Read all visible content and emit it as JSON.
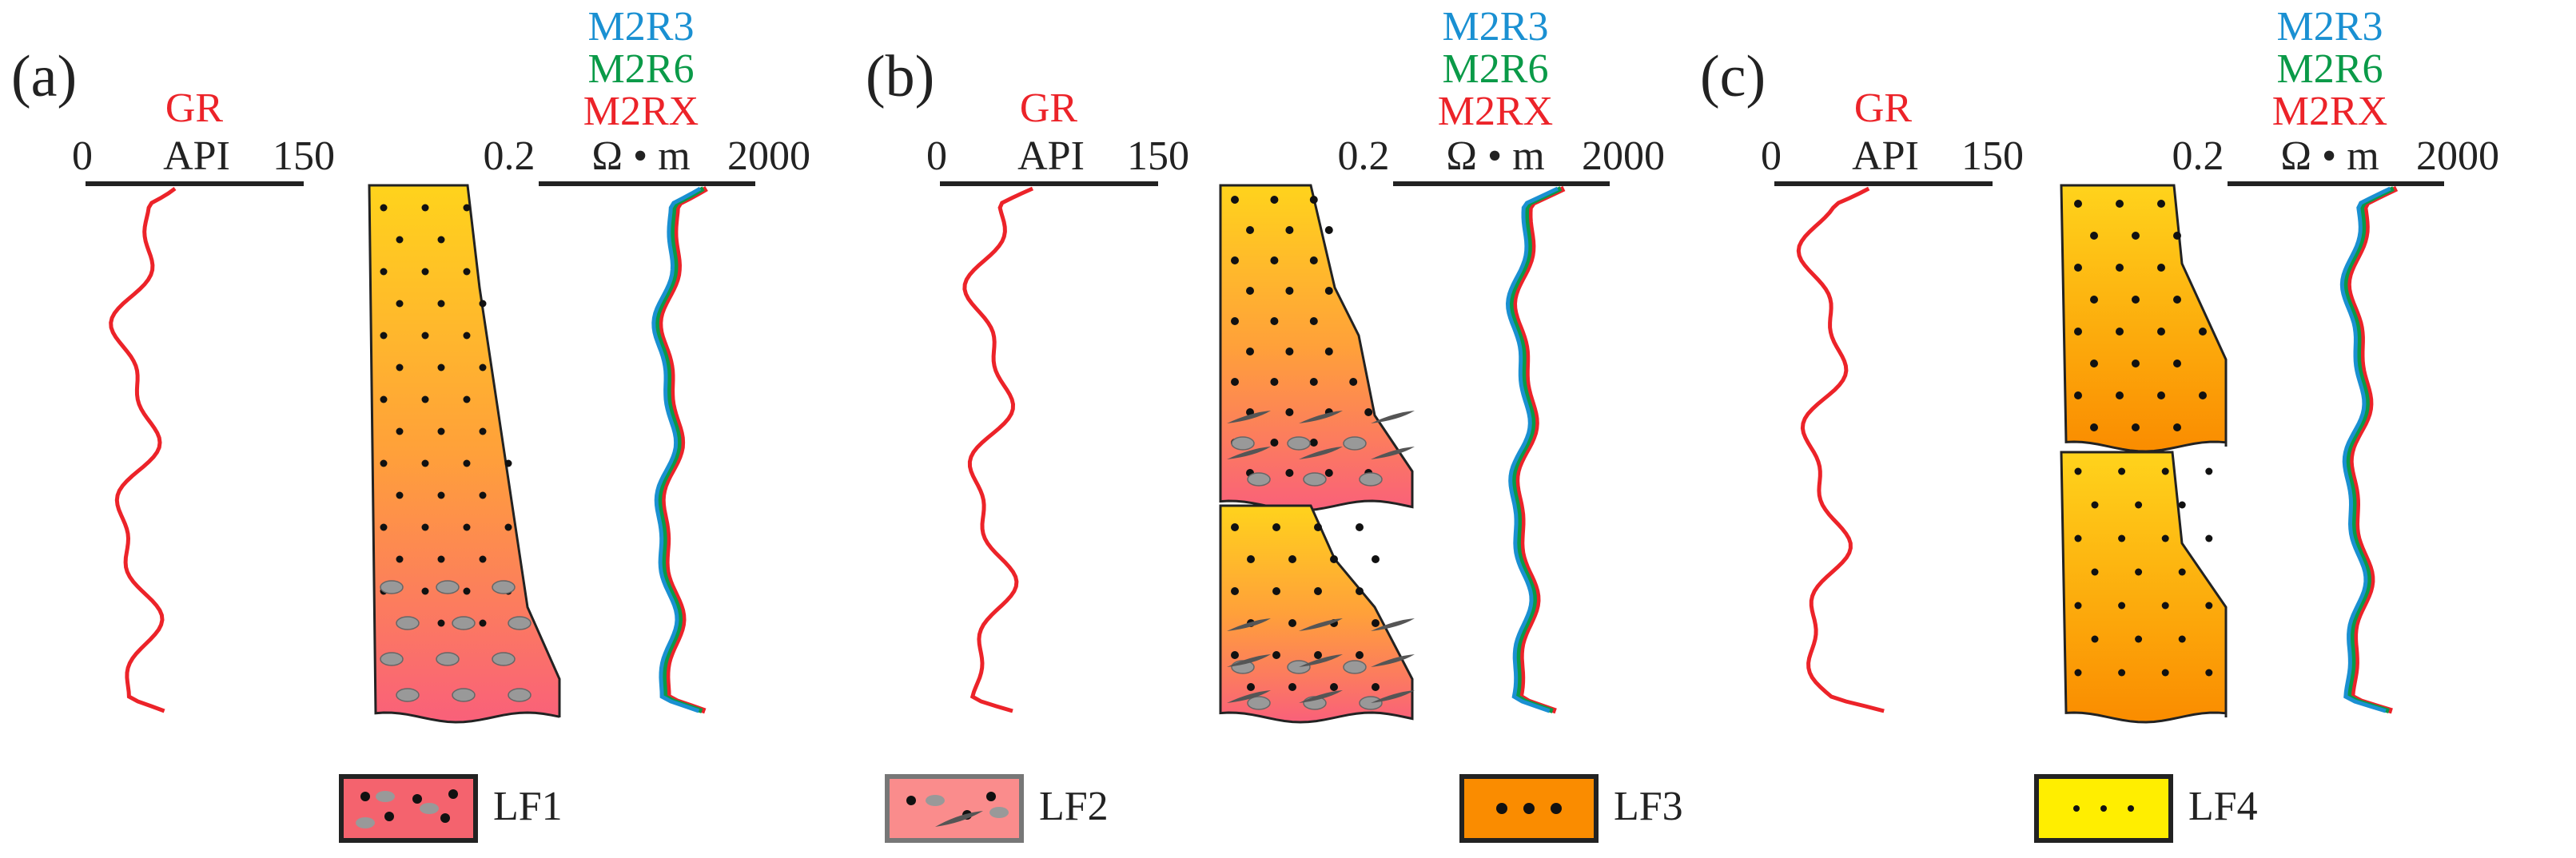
{
  "panels": [
    {
      "label": "(a)",
      "gr": {
        "title": "GR",
        "min": "0",
        "unit": "API",
        "max": "150"
      },
      "resistivity": {
        "curves": [
          "M2R3",
          "M2R6",
          "M2RX"
        ],
        "min": "0.2",
        "unit": "Ω • m",
        "max": "2000"
      }
    },
    {
      "label": "(b)",
      "gr": {
        "title": "GR",
        "min": "0",
        "unit": "API",
        "max": "150"
      },
      "resistivity": {
        "curves": [
          "M2R3",
          "M2R6",
          "M2RX"
        ],
        "min": "0.2",
        "unit": "Ω • m",
        "max": "2000"
      }
    },
    {
      "label": "(c)",
      "gr": {
        "title": "GR",
        "min": "0",
        "unit": "API",
        "max": "150"
      },
      "resistivity": {
        "curves": [
          "M2R3",
          "M2R6",
          "M2RX"
        ],
        "min": "0.2",
        "unit": "Ω • m",
        "max": "2000"
      }
    }
  ],
  "legend": [
    {
      "label": "LF1"
    },
    {
      "label": "LF2"
    },
    {
      "label": "LF3"
    },
    {
      "label": "LF4"
    }
  ]
}
